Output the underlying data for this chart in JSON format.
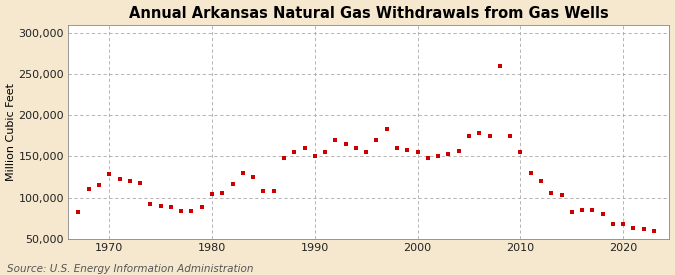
{
  "title": "Annual Arkansas Natural Gas Withdrawals from Gas Wells",
  "ylabel": "Million Cubic Feet",
  "source": "Source: U.S. Energy Information Administration",
  "background_color": "#f5e8ce",
  "plot_bg_color": "#ffffff",
  "dot_color": "#cc0000",
  "years": [
    1967,
    1968,
    1969,
    1970,
    1971,
    1972,
    1973,
    1974,
    1975,
    1976,
    1977,
    1978,
    1979,
    1980,
    1981,
    1982,
    1983,
    1984,
    1985,
    1986,
    1987,
    1988,
    1989,
    1990,
    1991,
    1992,
    1993,
    1994,
    1995,
    1996,
    1997,
    1998,
    1999,
    2000,
    2001,
    2002,
    2003,
    2004,
    2005,
    2006,
    2007,
    2008,
    2009,
    2010,
    2011,
    2012,
    2013,
    2014,
    2015,
    2016,
    2017,
    2018,
    2019,
    2020,
    2021,
    2022,
    2023
  ],
  "values": [
    82000,
    110000,
    115000,
    128000,
    122000,
    120000,
    118000,
    92000,
    90000,
    88000,
    84000,
    84000,
    88000,
    104000,
    106000,
    116000,
    130000,
    125000,
    108000,
    108000,
    148000,
    155000,
    160000,
    150000,
    155000,
    170000,
    165000,
    160000,
    155000,
    170000,
    183000,
    160000,
    158000,
    155000,
    148000,
    150000,
    153000,
    156000,
    175000,
    178000,
    175000,
    260000,
    175000,
    155000,
    130000,
    120000,
    105000,
    103000,
    83000,
    85000,
    85000,
    80000,
    68000,
    68000,
    63000,
    62000,
    60000
  ],
  "ylim": [
    50000,
    310000
  ],
  "yticks": [
    50000,
    100000,
    150000,
    200000,
    250000,
    300000
  ],
  "xticks": [
    1970,
    1980,
    1990,
    2000,
    2010,
    2020
  ],
  "xlim": [
    1966.0,
    2024.5
  ],
  "grid_color": "#aaaaaa",
  "title_fontsize": 10.5,
  "axis_fontsize": 8,
  "source_fontsize": 7.5,
  "marker_size": 12
}
